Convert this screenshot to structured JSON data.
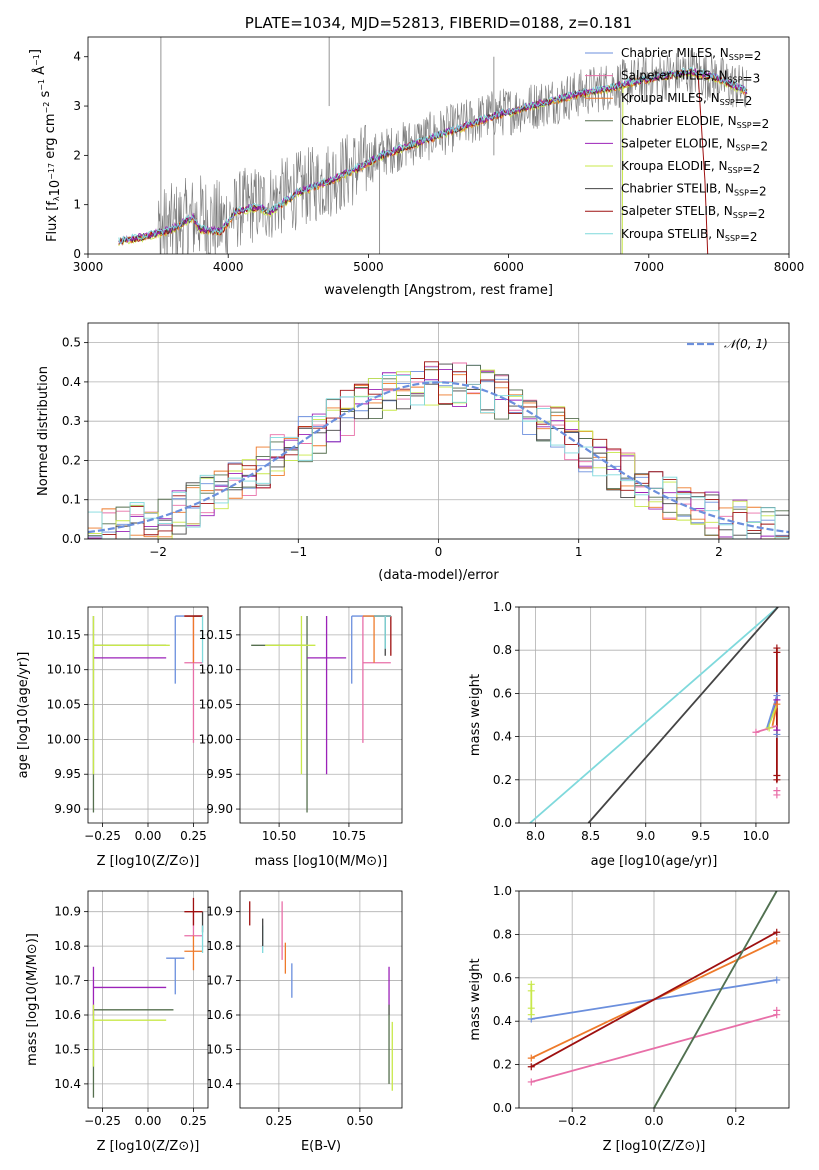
{
  "colors": {
    "chabrier_miles": "#6b8fdd",
    "salpeter_miles": "#e86fa8",
    "kroupa_miles": "#ee7a2a",
    "chabrier_elodie": "#556f4e",
    "salpeter_elodie": "#9b22b8",
    "kroupa_elodie": "#c8e84a",
    "chabrier_stelib": "#444444",
    "salpeter_stelib": "#9e1010",
    "kroupa_stelib": "#7fd9dc",
    "gaussian": "#6b8fdd",
    "grid": "#b0b0b0"
  },
  "chart_data": [
    {
      "id": "spectrum",
      "type": "line",
      "title": "PLATE=1034, MJD=52813, FIBERID=0188, z=0.181",
      "xlabel": "wavelength [Angstrom, rest frame]",
      "ylabel": "Flux [f_λ 10^-17 erg cm^-2 s^-1 Å^-1]",
      "xlim": [
        3000,
        8000
      ],
      "ylim": [
        0,
        4.4
      ],
      "xticks": [
        "3000",
        "4000",
        "5000",
        "6000",
        "7000",
        "8000"
      ],
      "yticks": [
        "0",
        "1",
        "2",
        "3",
        "4"
      ],
      "grid": false,
      "legend_position": "right",
      "legend": [
        "Chabrier MILES, N_SSP=2",
        "Salpeter MILES, N_SSP=3",
        "Kroupa MILES, N_SSP=2",
        "Chabrier ELODIE, N_SSP=2",
        "Salpeter ELODIE, N_SSP=2",
        "Kroupa ELODIE, N_SSP=2",
        "Chabrier STELIB, N_SSP=2",
        "Salpeter STELIB, N_SSP=2",
        "Kroupa STELIB, N_SSP=2"
      ],
      "series": [
        {
          "name": "data",
          "x": [
            3220,
            3400,
            3600,
            3800,
            3950,
            4100,
            4300,
            4500,
            4700,
            4900,
            5100,
            5300,
            5500,
            5700,
            5900,
            6100,
            6300,
            6500,
            6700,
            6900,
            7100,
            7300,
            7500,
            7700
          ],
          "y": [
            0.25,
            0.35,
            0.55,
            0.75,
            0.6,
            0.95,
            1.05,
            1.3,
            1.5,
            1.75,
            2.05,
            2.25,
            2.45,
            2.65,
            2.85,
            2.95,
            3.1,
            3.25,
            3.4,
            3.5,
            3.6,
            3.7,
            3.55,
            3.3
          ]
        },
        {
          "name": "model",
          "x": [
            3220,
            3400,
            3600,
            3750,
            3800,
            3950,
            4050,
            4200,
            4300,
            4500,
            4700,
            4900,
            5100,
            5300,
            5500,
            5700,
            5900,
            6100,
            6300,
            6500,
            6700,
            6900,
            7100,
            7300,
            7500,
            7700
          ],
          "y": [
            0.25,
            0.35,
            0.5,
            0.75,
            0.5,
            0.45,
            0.85,
            0.95,
            0.85,
            1.25,
            1.45,
            1.7,
            2.0,
            2.2,
            2.4,
            2.6,
            2.8,
            2.95,
            3.1,
            3.25,
            3.35,
            3.5,
            3.6,
            3.7,
            3.55,
            3.3
          ]
        }
      ]
    },
    {
      "id": "residuals",
      "type": "line",
      "xlabel": "(data-model)/error",
      "ylabel": "Normed distribution",
      "xlim": [
        -2.5,
        2.5
      ],
      "ylim": [
        0,
        0.55
      ],
      "xticks": [
        "−2",
        "−1",
        "0",
        "1",
        "2"
      ],
      "yticks": [
        "0.0",
        "0.1",
        "0.2",
        "0.3",
        "0.4",
        "0.5"
      ],
      "grid": true,
      "legend_position": "top-right",
      "legend": [
        "𝒩(0, 1)"
      ],
      "bin_width": 0.1
    },
    {
      "id": "age_vs_Z",
      "type": "scatter",
      "xlabel": "Z [log10(Z/Z⊙)]",
      "ylabel": "age  [log10(age/yr)]",
      "xlim": [
        -0.33,
        0.33
      ],
      "ylim": [
        9.88,
        10.19
      ],
      "xticks": [
        "−0.25",
        "0.00",
        "0.25"
      ],
      "yticks": [
        "9.90",
        "9.95",
        "10.00",
        "10.05",
        "10.10",
        "10.15"
      ],
      "grid": true,
      "errorbars": [
        {
          "c": "chabrier_miles",
          "x": 0.15,
          "y": 10.177,
          "xe": [
            0.15,
            0.3
          ],
          "ye": [
            10.08,
            10.177
          ]
        },
        {
          "c": "salpeter_miles",
          "x": 0.25,
          "y": 10.11,
          "xe": [
            0.2,
            0.3
          ],
          "ye": [
            9.995,
            10.177
          ]
        },
        {
          "c": "kroupa_miles",
          "x": 0.25,
          "y": 10.177,
          "xe": [
            0.2,
            0.3
          ],
          "ye": [
            10.11,
            10.177
          ]
        },
        {
          "c": "chabrier_elodie",
          "x": -0.3,
          "y": 10.135,
          "xe": [
            -0.3,
            0.1
          ],
          "ye": [
            9.895,
            10.177
          ]
        },
        {
          "c": "salpeter_elodie",
          "x": -0.3,
          "y": 10.117,
          "xe": [
            -0.3,
            0.1
          ],
          "ye": [
            10.117,
            10.117
          ]
        },
        {
          "c": "kroupa_elodie",
          "x": -0.3,
          "y": 10.135,
          "xe": [
            -0.3,
            0.12
          ],
          "ye": [
            9.95,
            10.177
          ]
        },
        {
          "c": "chabrier_stelib",
          "x": 0.3,
          "y": 10.177,
          "xe": [
            0.25,
            0.3
          ],
          "ye": [
            10.177,
            10.177
          ]
        },
        {
          "c": "salpeter_stelib",
          "x": 0.25,
          "y": 10.177,
          "xe": [
            0.2,
            0.3
          ],
          "ye": [
            10.177,
            10.177
          ]
        },
        {
          "c": "kroupa_stelib",
          "x": 0.3,
          "y": 10.177,
          "xe": [
            0.3,
            0.3
          ],
          "ye": [
            10.11,
            10.177
          ]
        }
      ]
    },
    {
      "id": "age_vs_mass",
      "type": "scatter",
      "xlabel": "mass [log10(M/M⊙)]",
      "xlim": [
        10.36,
        10.94
      ],
      "ylim": [
        9.88,
        10.19
      ],
      "xticks": [
        "10.50",
        "10.75"
      ],
      "yticks": [
        "9.90",
        "9.95",
        "10.00",
        "10.05",
        "10.10",
        "10.15"
      ],
      "grid": true,
      "errorbars": [
        {
          "c": "chabrier_miles",
          "x": 10.76,
          "y": 10.177,
          "xe": [
            10.76,
            10.9
          ],
          "ye": [
            10.08,
            10.177
          ]
        },
        {
          "c": "salpeter_miles",
          "x": 10.8,
          "y": 10.11,
          "xe": [
            10.8,
            10.9
          ],
          "ye": [
            9.995,
            10.177
          ]
        },
        {
          "c": "kroupa_miles",
          "x": 10.84,
          "y": 10.177,
          "xe": [
            10.8,
            10.9
          ],
          "ye": [
            10.11,
            10.177
          ]
        },
        {
          "c": "chabrier_elodie",
          "x": 10.6,
          "y": 10.135,
          "xe": [
            10.4,
            10.6
          ],
          "ye": [
            9.895,
            10.177
          ]
        },
        {
          "c": "salpeter_elodie",
          "x": 10.67,
          "y": 10.117,
          "xe": [
            10.6,
            10.74
          ],
          "ye": [
            9.95,
            10.177
          ]
        },
        {
          "c": "kroupa_elodie",
          "x": 10.58,
          "y": 10.135,
          "xe": [
            10.45,
            10.63
          ],
          "ye": [
            9.95,
            10.177
          ]
        },
        {
          "c": "chabrier_stelib",
          "x": 10.88,
          "y": 10.177,
          "xe": [
            10.84,
            10.9
          ],
          "ye": [
            10.12,
            10.177
          ]
        },
        {
          "c": "salpeter_stelib",
          "x": 10.9,
          "y": 10.177,
          "xe": [
            10.84,
            10.9
          ],
          "ye": [
            10.12,
            10.177
          ]
        },
        {
          "c": "kroupa_stelib",
          "x": 10.88,
          "y": 10.177,
          "xe": [
            10.84,
            10.9
          ],
          "ye": [
            10.13,
            10.177
          ]
        }
      ]
    },
    {
      "id": "weight_vs_age",
      "type": "line",
      "xlabel": "age  [log10(age/yr)]",
      "ylabel": "mass weight",
      "xlim": [
        7.85,
        10.3
      ],
      "ylim": [
        0,
        1
      ],
      "xticks": [
        "8.0",
        "8.5",
        "9.0",
        "9.5",
        "10.0"
      ],
      "yticks": [
        "0.0",
        "0.2",
        "0.4",
        "0.6",
        "0.8",
        "1.0"
      ],
      "grid": true,
      "lines": [
        {
          "c": "kroupa_stelib",
          "x": [
            7.95,
            10.2
          ],
          "y": [
            0.0,
            1.0
          ]
        },
        {
          "c": "chabrier_stelib",
          "x": [
            8.48,
            10.2
          ],
          "y": [
            0.0,
            1.0
          ]
        },
        {
          "c": "salpeter_stelib",
          "x": [
            10.19,
            10.19
          ],
          "y": [
            0.19,
            0.81
          ]
        },
        {
          "c": "kroupa_miles",
          "x": [
            10.15,
            10.19
          ],
          "y": [
            0.45,
            0.55
          ]
        },
        {
          "c": "salpeter_elodie",
          "x": [
            10.1,
            10.19
          ],
          "y": [
            0.43,
            0.57
          ]
        },
        {
          "c": "kroupa_elodie",
          "x": [
            10.1,
            10.19
          ],
          "y": [
            0.43,
            0.55
          ]
        },
        {
          "c": "salpeter_miles",
          "x": [
            10.0,
            10.19
          ],
          "y": [
            0.42,
            0.45
          ]
        },
        {
          "c": "chabrier_miles",
          "x": [
            10.1,
            10.19
          ],
          "y": [
            0.44,
            0.59
          ]
        }
      ],
      "markers": [
        {
          "c": "salpeter_stelib",
          "x": 10.19,
          "y": 0.81
        },
        {
          "c": "salpeter_stelib",
          "x": 10.19,
          "y": 0.79
        },
        {
          "c": "salpeter_stelib",
          "x": 10.19,
          "y": 0.2
        },
        {
          "c": "salpeter_stelib",
          "x": 10.19,
          "y": 0.22
        },
        {
          "c": "salpeter_miles",
          "x": 10.19,
          "y": 0.13
        },
        {
          "c": "salpeter_miles",
          "x": 10.19,
          "y": 0.15
        },
        {
          "c": "salpeter_miles",
          "x": 10.0,
          "y": 0.42
        },
        {
          "c": "salpeter_elodie",
          "x": 10.19,
          "y": 0.57
        },
        {
          "c": "salpeter_elodie",
          "x": 10.19,
          "y": 0.43
        },
        {
          "c": "chabrier_miles",
          "x": 10.19,
          "y": 0.59
        },
        {
          "c": "chabrier_miles",
          "x": 10.19,
          "y": 0.41
        },
        {
          "c": "kroupa_miles",
          "x": 10.19,
          "y": 0.55
        },
        {
          "c": "kroupa_elodie",
          "x": 10.12,
          "y": 0.44
        }
      ]
    },
    {
      "id": "mass_vs_Z",
      "type": "scatter",
      "xlabel": "Z [log10(Z/Z⊙)]",
      "ylabel": "mass [log10(M/M⊙)]",
      "xlim": [
        -0.33,
        0.33
      ],
      "ylim": [
        10.33,
        10.96
      ],
      "xticks": [
        "−0.25",
        "0.00",
        "0.25"
      ],
      "yticks": [
        "10.4",
        "10.5",
        "10.6",
        "10.7",
        "10.8",
        "10.9"
      ],
      "grid": true,
      "errorbars": [
        {
          "c": "chabrier_miles",
          "x": 0.15,
          "y": 10.765,
          "xe": [
            0.1,
            0.2
          ],
          "ye": [
            10.66,
            10.765
          ]
        },
        {
          "c": "salpeter_miles",
          "x": 0.25,
          "y": 10.83,
          "xe": [
            0.2,
            0.3
          ],
          "ye": [
            10.83,
            10.9
          ]
        },
        {
          "c": "kroupa_miles",
          "x": 0.25,
          "y": 10.785,
          "xe": [
            0.2,
            0.3
          ],
          "ye": [
            10.73,
            10.83
          ]
        },
        {
          "c": "chabrier_elodie",
          "x": -0.3,
          "y": 10.615,
          "xe": [
            -0.3,
            0.14
          ],
          "ye": [
            10.36,
            10.615
          ]
        },
        {
          "c": "salpeter_elodie",
          "x": -0.3,
          "y": 10.68,
          "xe": [
            -0.3,
            0.1
          ],
          "ye": [
            10.6,
            10.74
          ]
        },
        {
          "c": "kroupa_elodie",
          "x": -0.3,
          "y": 10.585,
          "xe": [
            -0.3,
            0.1
          ],
          "ye": [
            10.45,
            10.63
          ]
        },
        {
          "c": "chabrier_stelib",
          "x": 0.3,
          "y": 10.88,
          "xe": [
            0.3,
            0.3
          ],
          "ye": [
            10.84,
            10.9
          ]
        },
        {
          "c": "salpeter_stelib",
          "x": 0.25,
          "y": 10.9,
          "xe": [
            0.2,
            0.3
          ],
          "ye": [
            10.86,
            10.94
          ]
        },
        {
          "c": "kroupa_stelib",
          "x": 0.3,
          "y": 10.82,
          "xe": [
            0.3,
            0.3
          ],
          "ye": [
            10.78,
            10.86
          ]
        }
      ]
    },
    {
      "id": "mass_vs_ebv",
      "type": "scatter",
      "xlabel": "E(B-V)",
      "xlim": [
        0.13,
        0.63
      ],
      "ylim": [
        10.33,
        10.96
      ],
      "xticks": [
        "0.25",
        "0.50"
      ],
      "yticks": [
        "10.4",
        "10.5",
        "10.6",
        "10.7",
        "10.8",
        "10.9"
      ],
      "grid": true,
      "errorbars": [
        {
          "c": "salpeter_stelib",
          "x": 0.16,
          "y": 10.9,
          "ye": [
            10.86,
            10.93
          ]
        },
        {
          "c": "kroupa_stelib",
          "x": 0.2,
          "y": 10.82,
          "ye": [
            10.78,
            10.86
          ]
        },
        {
          "c": "chabrier_stelib",
          "x": 0.2,
          "y": 10.84,
          "ye": [
            10.8,
            10.88
          ]
        },
        {
          "c": "salpeter_miles",
          "x": 0.26,
          "y": 10.87,
          "ye": [
            10.76,
            10.93
          ]
        },
        {
          "c": "kroupa_miles",
          "x": 0.27,
          "y": 10.77,
          "ye": [
            10.72,
            10.81
          ]
        },
        {
          "c": "chabrier_miles",
          "x": 0.29,
          "y": 10.7,
          "ye": [
            10.65,
            10.75
          ]
        },
        {
          "c": "salpeter_elodie",
          "x": 0.59,
          "y": 10.68,
          "ye": [
            10.6,
            10.74
          ]
        },
        {
          "c": "chabrier_elodie",
          "x": 0.59,
          "y": 10.52,
          "ye": [
            10.4,
            10.63
          ]
        },
        {
          "c": "kroupa_elodie",
          "x": 0.6,
          "y": 10.47,
          "ye": [
            10.38,
            10.58
          ]
        }
      ]
    },
    {
      "id": "weight_vs_Z",
      "type": "line",
      "xlabel": "Z [log10(Z/Z⊙)]",
      "ylabel": "mass weight",
      "xlim": [
        -0.33,
        0.33
      ],
      "ylim": [
        0,
        1
      ],
      "xticks": [
        "−0.2",
        "0.0",
        "0.2"
      ],
      "yticks": [
        "0.0",
        "0.2",
        "0.4",
        "0.6",
        "0.8",
        "1.0"
      ],
      "grid": true,
      "lines": [
        {
          "c": "chabrier_miles",
          "x": [
            -0.3,
            0.3
          ],
          "y": [
            0.41,
            0.59
          ]
        },
        {
          "c": "kroupa_miles",
          "x": [
            -0.3,
            0.3
          ],
          "y": [
            0.23,
            0.77
          ]
        },
        {
          "c": "salpeter_stelib",
          "x": [
            -0.3,
            0.3
          ],
          "y": [
            0.19,
            0.81
          ]
        },
        {
          "c": "salpeter_miles",
          "x": [
            -0.3,
            0.3
          ],
          "y": [
            0.12,
            0.43
          ]
        },
        {
          "c": "kroupa_stelib",
          "x": [
            0.0,
            0.3
          ],
          "y": [
            0.0,
            1.0
          ]
        },
        {
          "c": "chabrier_elodie",
          "x": [
            0.0,
            0.3
          ],
          "y": [
            0.0,
            1.0
          ]
        },
        {
          "c": "kroupa_elodie",
          "x": [
            -0.3,
            -0.3
          ],
          "y": [
            0.43,
            0.57
          ]
        }
      ],
      "markers": [
        {
          "c": "chabrier_miles",
          "x": -0.3,
          "y": 0.41
        },
        {
          "c": "chabrier_miles",
          "x": 0.3,
          "y": 0.59
        },
        {
          "c": "kroupa_miles",
          "x": -0.3,
          "y": 0.23
        },
        {
          "c": "kroupa_miles",
          "x": 0.3,
          "y": 0.77
        },
        {
          "c": "salpeter_stelib",
          "x": -0.3,
          "y": 0.19
        },
        {
          "c": "salpeter_stelib",
          "x": 0.3,
          "y": 0.81
        },
        {
          "c": "salpeter_miles",
          "x": -0.3,
          "y": 0.12
        },
        {
          "c": "salpeter_miles",
          "x": 0.3,
          "y": 0.43
        },
        {
          "c": "salpeter_miles",
          "x": 0.3,
          "y": 0.45
        },
        {
          "c": "kroupa_elodie",
          "x": -0.3,
          "y": 0.57
        },
        {
          "c": "kroupa_elodie",
          "x": -0.3,
          "y": 0.54
        },
        {
          "c": "kroupa_elodie",
          "x": -0.3,
          "y": 0.46
        },
        {
          "c": "kroupa_elodie",
          "x": -0.3,
          "y": 0.43
        }
      ]
    }
  ]
}
